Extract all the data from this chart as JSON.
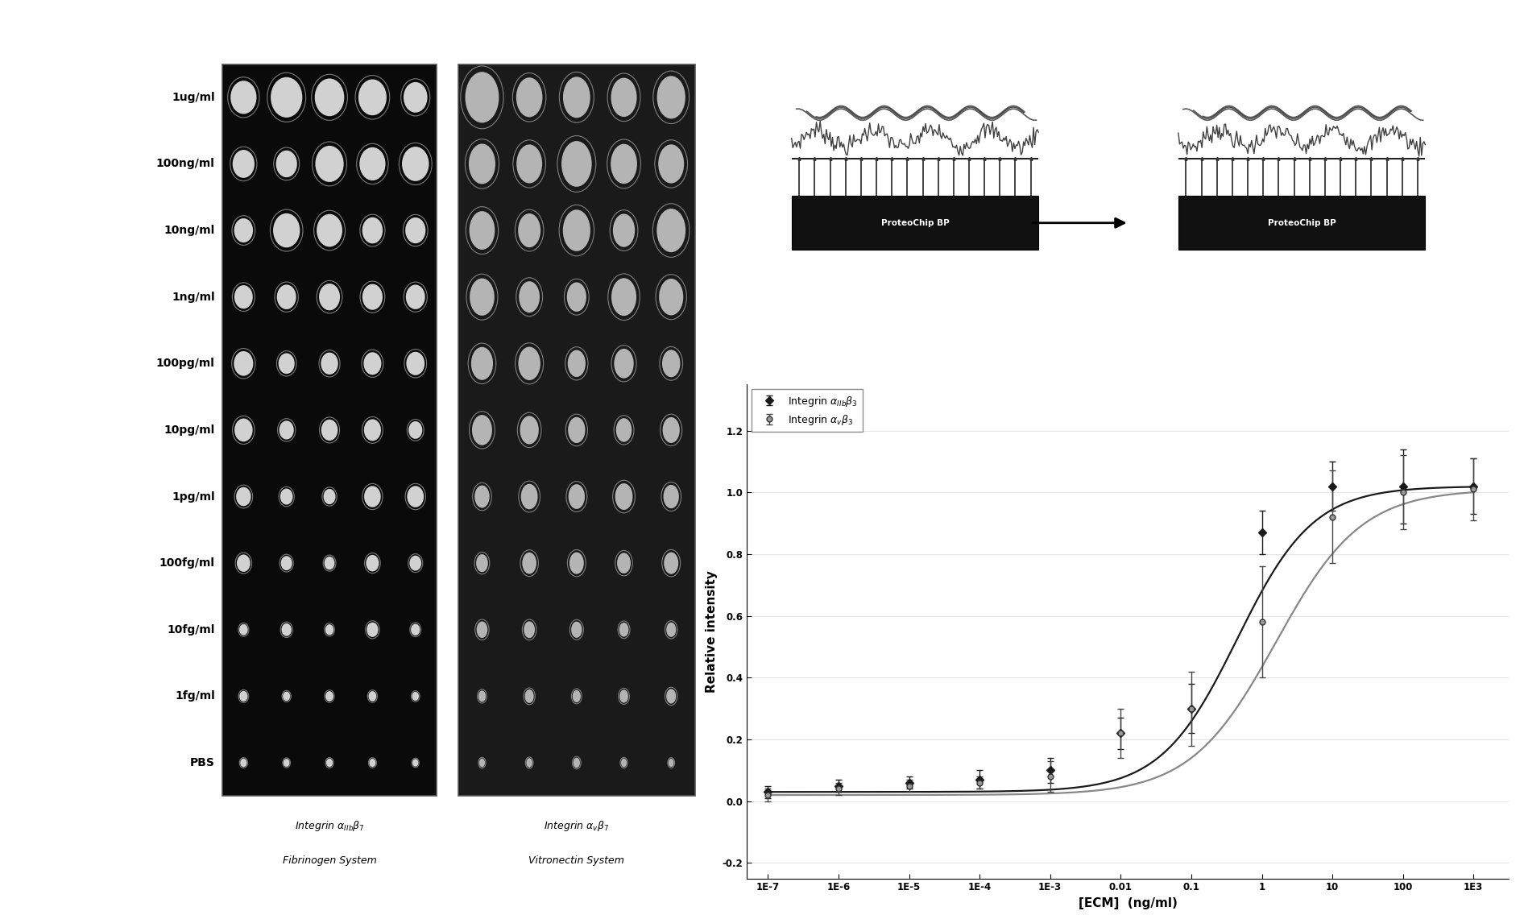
{
  "row_labels": [
    "1ug/ml",
    "100ng/ml",
    "10ng/ml",
    "1ng/ml",
    "100pg/ml",
    "10pg/ml",
    "1pg/ml",
    "100fg/ml",
    "10fg/ml",
    "1fg/ml",
    "PBS"
  ],
  "n_cols": 5,
  "n_rows": 11,
  "left_panel_label1": "Integrin αₕₙβ₇",
  "left_panel_label2": "Fibrinogen System",
  "right_panel_label1": "Integrin αᵥβ₇",
  "right_panel_label2": "Vitronectin System",
  "curve1_label": "Integrin αₕₙβ₃",
  "curve2_label": "Integrin αᵥβ₃",
  "xlabel": "[ECM]  (ng/ml)",
  "ylabel": "Relative intensity",
  "xtick_labels": [
    "1E-7",
    "1E-6",
    "1E-5",
    "1E-4",
    "1E-3",
    "0.01",
    "0.1",
    "1",
    "10",
    "100",
    "1E3"
  ],
  "xvals": [
    -7,
    -6,
    -5,
    -4,
    -3,
    -2,
    -1,
    0,
    1,
    2,
    3
  ],
  "ylim": [
    -0.25,
    1.35
  ],
  "yticks": [
    -0.2,
    0.0,
    0.2,
    0.4,
    0.6,
    0.8,
    1.0,
    1.2
  ],
  "curve1_x": [
    -7,
    -6,
    -5,
    -4,
    -3,
    -2,
    -1,
    0,
    1,
    2,
    3
  ],
  "curve1_y": [
    0.03,
    0.05,
    0.06,
    0.07,
    0.1,
    0.22,
    0.3,
    0.87,
    1.02,
    1.02,
    1.02
  ],
  "curve1_err": [
    0.02,
    0.02,
    0.02,
    0.03,
    0.04,
    0.05,
    0.08,
    0.07,
    0.08,
    0.12,
    0.09
  ],
  "curve2_x": [
    -7,
    -6,
    -5,
    -4,
    -3,
    -2,
    -1,
    0,
    1,
    2,
    3
  ],
  "curve2_y": [
    0.02,
    0.04,
    0.05,
    0.06,
    0.08,
    0.22,
    0.3,
    0.58,
    0.92,
    1.0,
    1.01
  ],
  "curve2_err": [
    0.02,
    0.02,
    0.02,
    0.02,
    0.05,
    0.08,
    0.12,
    0.18,
    0.15,
    0.12,
    0.1
  ],
  "bg_color_left": "#0a0a0a",
  "bg_color_right": "#1a1a1a",
  "spot_color_left": "#e8e8e8",
  "spot_color_right": "#d0d0d0",
  "text_color": "#000000",
  "curve1_color": "#1a1a1a",
  "curve2_color": "#555555",
  "chip_bar_color": "#444444",
  "chip_label_color": "#ffffff"
}
